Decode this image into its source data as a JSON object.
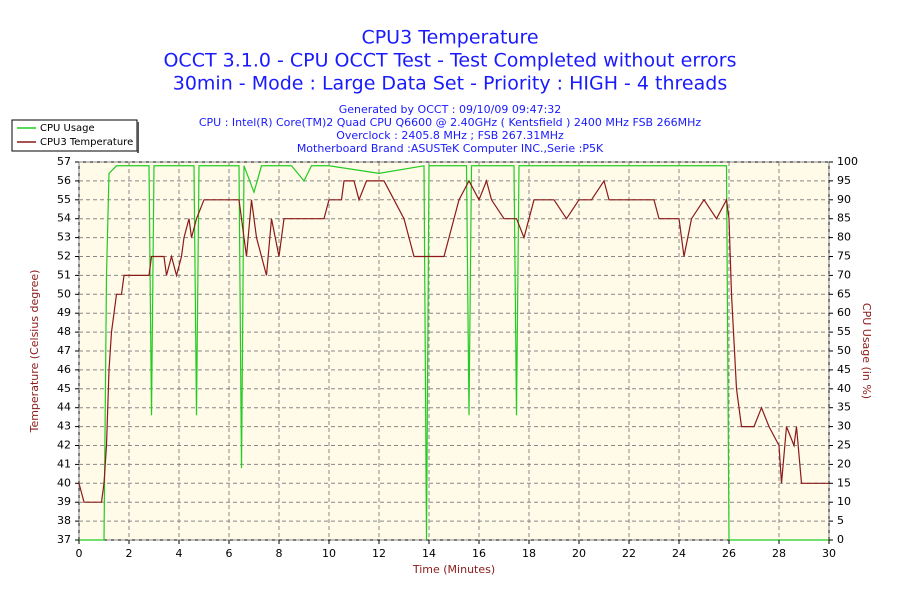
{
  "chart_data": {
    "type": "line",
    "title": "CPU3 Temperature",
    "subtitles": [
      "OCCT 3.1.0 - CPU OCCT Test - Test Completed without errors",
      "30min - Mode : Large Data Set - Priority : HIGH - 4 threads"
    ],
    "info": [
      "Generated by OCCT : 09/10/09 09:47:32",
      "CPU : Intel(R) Core(TM)2 Quad CPU Q6600 @ 2.40GHz ( Kentsfield ) 2400 MHz FSB 266MHz",
      "Overclock : 2405.8 MHz ; FSB 267.31MHz",
      "Motherboard Brand :ASUSTeK Computer INC.,Serie :P5K"
    ],
    "x_label": "Time (Minutes)",
    "y_label": "Temperature (Celsius degree)",
    "y2_label": "CPU Usage (in %)",
    "xlim": [
      0,
      30
    ],
    "xticks": [
      0,
      2,
      4,
      6,
      8,
      10,
      12,
      14,
      16,
      18,
      20,
      22,
      24,
      26,
      28,
      30
    ],
    "ylim": [
      37,
      57
    ],
    "yticks": [
      37,
      38,
      39,
      40,
      41,
      42,
      43,
      44,
      45,
      46,
      47,
      48,
      49,
      50,
      51,
      52,
      53,
      54,
      55,
      56,
      57
    ],
    "y2lim": [
      0,
      100
    ],
    "y2ticks": [
      0,
      5,
      10,
      15,
      20,
      25,
      30,
      35,
      40,
      45,
      50,
      55,
      60,
      65,
      70,
      75,
      80,
      85,
      90,
      95,
      100
    ],
    "grid": true,
    "legend": "top-left",
    "series": [
      {
        "name": "CPU Usage",
        "color": "#22cc22",
        "axis": "y2",
        "x": [
          0,
          1.0,
          1.1,
          1.2,
          1.5,
          2.8,
          2.9,
          3.0,
          4.6,
          4.7,
          4.8,
          6.4,
          6.5,
          6.6,
          7.0,
          7.3,
          8.5,
          9.0,
          9.3,
          10.0,
          12.0,
          13.8,
          13.9,
          14.0,
          15.5,
          15.6,
          15.7,
          17.4,
          17.5,
          17.6,
          20.0,
          25.9,
          26.0,
          30
        ],
        "values": [
          0,
          0,
          70,
          97,
          99,
          99,
          33,
          99,
          99,
          33,
          99,
          99,
          19,
          99,
          92,
          99,
          99,
          95,
          99,
          99,
          97,
          99,
          0,
          99,
          99,
          33,
          99,
          99,
          33,
          99,
          99,
          99,
          0,
          0
        ]
      },
      {
        "name": "CPU3 Temperature",
        "color": "#8b1a1a",
        "x": [
          0,
          0.1,
          0.2,
          0.9,
          1.0,
          1.1,
          1.2,
          1.3,
          1.4,
          1.5,
          1.7,
          1.8,
          2.8,
          2.9,
          3.4,
          3.5,
          3.7,
          3.9,
          4.1,
          4.2,
          4.4,
          4.5,
          4.7,
          5.0,
          6.4,
          6.5,
          6.7,
          6.9,
          7.1,
          7.5,
          7.7,
          8.0,
          8.2,
          9.8,
          10.0,
          10.5,
          10.6,
          11.0,
          11.2,
          11.5,
          12.2,
          12.6,
          13.0,
          13.4,
          13.9,
          14.6,
          14.8,
          15.2,
          15.6,
          16.0,
          16.3,
          16.5,
          17.0,
          17.5,
          17.8,
          18.0,
          18.2,
          19.0,
          19.5,
          20.0,
          20.5,
          21.0,
          21.2,
          22.0,
          23.0,
          23.2,
          24.0,
          24.2,
          24.5,
          25.0,
          25.5,
          25.9,
          26.0,
          26.1,
          26.3,
          26.5,
          27.0,
          27.3,
          27.6,
          28.0,
          28.1,
          28.3,
          28.6,
          28.7,
          28.9,
          30
        ],
        "values": [
          40,
          39.5,
          39,
          39,
          40,
          42,
          46,
          48,
          49,
          50,
          50,
          51,
          51,
          52,
          52,
          51,
          52,
          51,
          52,
          53,
          54,
          53,
          54,
          55,
          55,
          54,
          52,
          55,
          53,
          51,
          54,
          52,
          54,
          54,
          55,
          55,
          56,
          56,
          55,
          56,
          56,
          55,
          54,
          52,
          52,
          52,
          53,
          55,
          56,
          55,
          56,
          55,
          54,
          54,
          53,
          54,
          55,
          55,
          54,
          55,
          55,
          56,
          55,
          55,
          55,
          54,
          54,
          52,
          54,
          55,
          54,
          55,
          54,
          50,
          45,
          43,
          43,
          44,
          43,
          42,
          40,
          43,
          42,
          43,
          40,
          40
        ]
      }
    ]
  }
}
